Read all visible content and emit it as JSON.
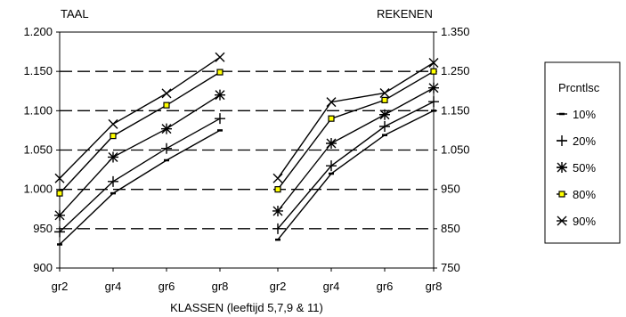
{
  "chart_data": {
    "type": "line",
    "xlabel": "KLASSEN (leeftijd 5,7,9 & 11)",
    "categories": [
      "gr2",
      "gr4",
      "gr6",
      "gr8"
    ],
    "grid": "horizontal dashed",
    "legend_title": "Prcntlsc",
    "legend_placement": "right",
    "panels": [
      {
        "title": "TAAL",
        "axis": "left",
        "ylim": [
          900,
          1200
        ],
        "ticks": [
          "900",
          "950",
          "1.000",
          "1.050",
          "1.100",
          "1.150",
          "1.200"
        ],
        "series": [
          {
            "name": "10%",
            "marker": "dash",
            "values": [
              930,
              995,
              1037,
              1075
            ]
          },
          {
            "name": "20%",
            "marker": "plus",
            "values": [
              946,
              1010,
              1052,
              1090
            ]
          },
          {
            "name": "50%",
            "marker": "asterisk",
            "values": [
              967,
              1041,
              1077,
              1120
            ]
          },
          {
            "name": "80%",
            "marker": "square",
            "values": [
              995,
              1068,
              1107,
              1149
            ]
          },
          {
            "name": "90%",
            "marker": "x",
            "values": [
              1014,
              1083,
              1122,
              1168
            ]
          }
        ]
      },
      {
        "title": "REKENEN",
        "axis": "right",
        "ylim": [
          750,
          1350
        ],
        "ticks": [
          "750",
          "850",
          "950",
          "1.050",
          "1.150",
          "1.250",
          "1.350"
        ],
        "series": [
          {
            "name": "10%",
            "marker": "dash",
            "values": [
              822,
              990,
              1088,
              1150
            ]
          },
          {
            "name": "20%",
            "marker": "plus",
            "values": [
              850,
              1010,
              1110,
              1173
            ]
          },
          {
            "name": "50%",
            "marker": "asterisk",
            "values": [
              895,
              1067,
              1140,
              1208
            ]
          },
          {
            "name": "80%",
            "marker": "square",
            "values": [
              950,
              1130,
              1177,
              1250
            ]
          },
          {
            "name": "90%",
            "marker": "x",
            "values": [
              978,
              1172,
              1195,
              1272
            ]
          }
        ]
      }
    ]
  },
  "colors": {
    "line": "#000000",
    "square_fill": "#ffff00",
    "grid": "#000000"
  }
}
